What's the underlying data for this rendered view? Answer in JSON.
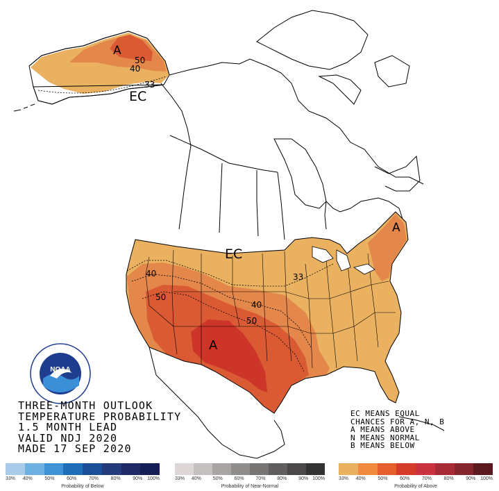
{
  "title": {
    "line1": "THREE-MONTH OUTLOOK",
    "line2": "TEMPERATURE PROBABILITY",
    "line3": "1.5 MONTH LEAD",
    "line4": "VALID NDJ 2020",
    "line5": "MADE 17 SEP 2020"
  },
  "legend_notes": {
    "line1": "EC MEANS EQUAL",
    "line2": "CHANCES FOR A, N, B",
    "line3": "A MEANS ABOVE",
    "line4": "N MEANS NORMAL",
    "line5": "B MEANS BELOW"
  },
  "map_labels": {
    "alaska_a": "A",
    "alaska_50": "50",
    "alaska_40": "40",
    "alaska_33": "33",
    "alaska_ec": "EC",
    "conus_ec": "EC",
    "conus_33": "33",
    "conus_40_west": "40",
    "conus_50_west": "50",
    "conus_40_east": "40",
    "conus_50_east": "50",
    "southwest_a": "A",
    "northeast_a": "A"
  },
  "scales": {
    "below": {
      "caption": "Probability of Below",
      "ticks": [
        "33%",
        "40%",
        "50%",
        "60%",
        "70%",
        "80%",
        "90%",
        "100%"
      ],
      "colors": [
        "#a9cbea",
        "#6fb0e2",
        "#3d93d6",
        "#1f6fb8",
        "#1a4f98",
        "#233b7a",
        "#1f2a66",
        "#151e55"
      ]
    },
    "normal": {
      "caption": "Probability of Near-Normal",
      "ticks": [
        "33%",
        "40%",
        "50%",
        "60%",
        "70%",
        "80%",
        "90%",
        "100%"
      ],
      "colors": [
        "#ddd7d7",
        "#c5c0c0",
        "#a9a5a5",
        "#8f8c8c",
        "#777474",
        "#605e5e",
        "#4a4848",
        "#343333"
      ]
    },
    "above": {
      "caption": "Probability of Above",
      "ticks": [
        "33%",
        "40%",
        "50%",
        "60%",
        "70%",
        "80%",
        "90%",
        "100%"
      ],
      "colors": [
        "#e9b160",
        "#f08a3e",
        "#e45f2c",
        "#d43b28",
        "#c9333f",
        "#a62b37",
        "#85252e",
        "#5a1a20"
      ]
    }
  },
  "colors": {
    "above_33": "#e9b160",
    "above_40": "#e4874a",
    "above_50": "#da5b33",
    "above_60": "#cd3528",
    "noaa_blue": "#1f3d8f"
  }
}
